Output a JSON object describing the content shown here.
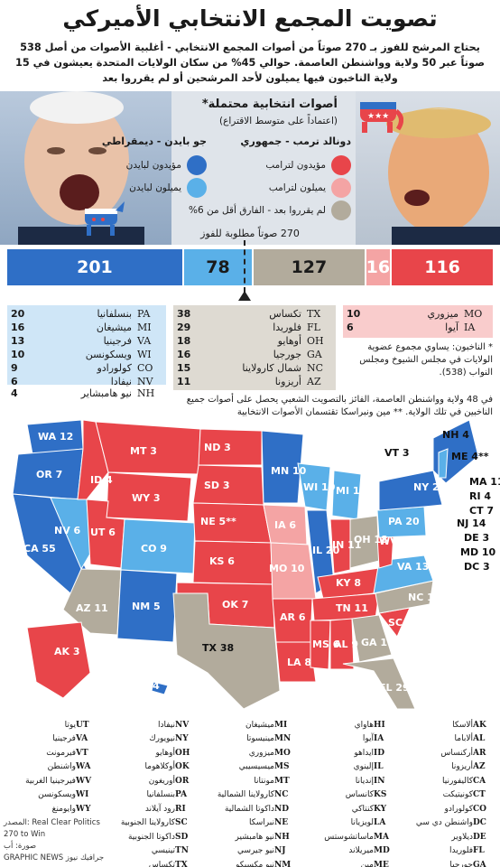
{
  "title": "تصويت المجمع الانتخابي الأميركي",
  "intro": "يحتاج المرشح للفوز بـ 270 صوتاً من أصوات المجمع الانتخابي - أغلبية الأصوات من أصل 538 صوتاً عبر 50 ولاية وواشنطن العاصمة. حوالي 45% من سكان الولايات المتحدة يعيشون في 15 ولاية الناخبون فيها يميلون لأحد المرشحين أو لم يقرروا بعد",
  "legend": {
    "title": "أصوات انتخابية محتملة*",
    "subtitle": "(اعتماداً على متوسط الاقتراع)",
    "trump": "دونالد ترمب - جمهوري",
    "biden": "جو بايدن - ديمقراطي",
    "items": [
      {
        "label": "مؤيدون لترامب",
        "color": "#e8454a"
      },
      {
        "label": "يميلون لترامب",
        "color": "#f4a4a4"
      },
      {
        "label": "لم يقرروا بعد - الفارق أقل من 6%",
        "color": "#b2ab9c"
      },
      {
        "label": "مؤيدون لبايدن",
        "color": "#2f6fc6"
      },
      {
        "label": "يميلون لبايدن",
        "color": "#5ab0e8"
      }
    ]
  },
  "bar": {
    "label": "270 صوتاً مطلوبة للفوز",
    "segments": [
      {
        "value": 201,
        "color": "#2f6fc6"
      },
      {
        "value": 78,
        "color": "#5ab0e8"
      },
      {
        "value": 127,
        "color": "#b2ab9c"
      },
      {
        "value": 16,
        "color": "#f4a4a4"
      },
      {
        "value": 116,
        "color": "#e8454a"
      }
    ]
  },
  "lean_biden": [
    {
      "votes": "20",
      "abbr": "PA",
      "name": "بنسلفانيا"
    },
    {
      "votes": "16",
      "abbr": "MI",
      "name": "ميشيغان"
    },
    {
      "votes": "13",
      "abbr": "VA",
      "name": "فرجينيا"
    },
    {
      "votes": "10",
      "abbr": "WI",
      "name": "ويسكونسن"
    },
    {
      "votes": "9",
      "abbr": "CO",
      "name": "كولورادو"
    },
    {
      "votes": "6",
      "abbr": "NV",
      "name": "نيفادا"
    },
    {
      "votes": "4",
      "abbr": "NH",
      "name": "نيو هامبشاير"
    }
  ],
  "tossup": [
    {
      "votes": "38",
      "abbr": "TX",
      "name": "تكساس"
    },
    {
      "votes": "29",
      "abbr": "FL",
      "name": "فلوريدا"
    },
    {
      "votes": "18",
      "abbr": "OH",
      "name": "أوهايو"
    },
    {
      "votes": "16",
      "abbr": "GA",
      "name": "جورجيا"
    },
    {
      "votes": "15",
      "abbr": "NC",
      "name": "شمال كارولاينا"
    },
    {
      "votes": "11",
      "abbr": "AZ",
      "name": "أريزونا"
    }
  ],
  "lean_trump": [
    {
      "votes": "10",
      "abbr": "MO",
      "name": "ميزوري"
    },
    {
      "votes": "6",
      "abbr": "IA",
      "name": "آيوا"
    }
  ],
  "note_electors": "* الناخبون: يساوي مجموع عضوية الولايات في مجلس الشيوخ ومجلس النواب (538).",
  "note_wta": "في 48 ولاية وواشنطن العاصمة، الفائز بالتصويت الشعبي يحصل على أصوات جميع الناخبين في تلك الولاية. ** مين ونبراسكا تقتسمان الأصوات الانتخابية",
  "key_columns": [
    [
      [
        "AK",
        "ألاسكا"
      ],
      [
        "AL",
        "ألاباما"
      ],
      [
        "AR",
        "أركنساس"
      ],
      [
        "AZ",
        "أريزونا"
      ],
      [
        "CA",
        "كاليفورنيا"
      ],
      [
        "CT",
        "كونيتيكت"
      ],
      [
        "CO",
        "كولورادو"
      ],
      [
        "DC",
        "واشنطن دي سي"
      ],
      [
        "DE",
        "ديلاوير"
      ],
      [
        "FL",
        "فلوريدا"
      ],
      [
        "GA",
        "جورجيا"
      ]
    ],
    [
      [
        "HI",
        "هاواي"
      ],
      [
        "IA",
        "آيوا"
      ],
      [
        "ID",
        "ايداهو"
      ],
      [
        "IL",
        "إلينوي"
      ],
      [
        "IN",
        "إنديانا"
      ],
      [
        "KS",
        "كانساس"
      ],
      [
        "KY",
        "كنتاكي"
      ],
      [
        "LA",
        "لويزيانا"
      ],
      [
        "MA",
        "ماساتشوستس"
      ],
      [
        "MD",
        "ميريلاند"
      ],
      [
        "ME",
        "مين"
      ]
    ],
    [
      [
        "MI",
        "ميشيغان"
      ],
      [
        "MN",
        "مينيسوتا"
      ],
      [
        "MO",
        "ميزوري"
      ],
      [
        "MS",
        "ميسيسيبي"
      ],
      [
        "MT",
        "مونتانا"
      ],
      [
        "NC",
        "كارولاينا الشمالية"
      ],
      [
        "ND",
        "داكوتا الشمالية"
      ],
      [
        "NE",
        "نبراسكا"
      ],
      [
        "NH",
        "نيو هامبشير"
      ],
      [
        "NJ",
        "نيو جيرسي"
      ],
      [
        "NM",
        "نيو مكسيكو"
      ]
    ],
    [
      [
        "NV",
        "نيفادا"
      ],
      [
        "NY",
        "نيويورك"
      ],
      [
        "OH",
        "أوهايو"
      ],
      [
        "OK",
        "أوكلاهوما"
      ],
      [
        "OR",
        "أوريغون"
      ],
      [
        "PA",
        "بنسلفانيا"
      ],
      [
        "RI",
        "رود آيلاند"
      ],
      [
        "SC",
        "كارولاينا الجنوبية"
      ],
      [
        "SD",
        "داكوتا الجنوبية"
      ],
      [
        "TN",
        "تينيسي"
      ],
      [
        "TX",
        "تكساس"
      ]
    ],
    [
      [
        "UT",
        "يوتا"
      ],
      [
        "VA",
        "فرجينيا"
      ],
      [
        "VT",
        "فيرمونت"
      ],
      [
        "WA",
        "واشنطن"
      ],
      [
        "WV",
        "فيرجينيا الغربية"
      ],
      [
        "WI",
        "ويسكونسن"
      ],
      [
        "WY",
        "وايومنغ"
      ]
    ]
  ],
  "credit_source": "المصدر: Real Clear Politics",
  "credit_date": "270 to Win",
  "credit_month": "صورة: أب",
  "credit_brand": "GRAPHIC NEWS جرافيك نيوز",
  "map_labels": [
    {
      "t": "WA 12",
      "c": "#2f6fc6"
    },
    {
      "t": "OR 7",
      "c": "#2f6fc6"
    },
    {
      "t": "CA 55",
      "c": "#2f6fc6"
    },
    {
      "t": "NV 6",
      "c": "#5ab0e8"
    },
    {
      "t": "ID 4",
      "c": "#e8454a"
    },
    {
      "t": "MT 3",
      "c": "#e8454a"
    },
    {
      "t": "WY 3",
      "c": "#e8454a"
    },
    {
      "t": "UT 6",
      "c": "#e8454a"
    },
    {
      "t": "CO 9",
      "c": "#5ab0e8"
    },
    {
      "t": "AZ 11",
      "c": "#b2ab9c"
    },
    {
      "t": "NM 5",
      "c": "#2f6fc6"
    },
    {
      "t": "ND 3",
      "c": "#e8454a"
    },
    {
      "t": "SD 3",
      "c": "#e8454a"
    },
    {
      "t": "NE 5**",
      "c": "#e8454a"
    },
    {
      "t": "KS 6",
      "c": "#e8454a"
    },
    {
      "t": "OK 7",
      "c": "#e8454a"
    },
    {
      "t": "TX 38",
      "c": "#b2ab9c"
    },
    {
      "t": "MN 10",
      "c": "#2f6fc6"
    },
    {
      "t": "IA 6",
      "c": "#f4a4a4"
    },
    {
      "t": "MO 10",
      "c": "#f4a4a4"
    },
    {
      "t": "AR 6",
      "c": "#e8454a"
    },
    {
      "t": "LA 8",
      "c": "#e8454a"
    },
    {
      "t": "WI 10",
      "c": "#5ab0e8"
    },
    {
      "t": "IL 20",
      "c": "#2f6fc6"
    },
    {
      "t": "MI 16",
      "c": "#5ab0e8"
    },
    {
      "t": "IN 11",
      "c": "#e8454a"
    },
    {
      "t": "OH 18",
      "c": "#b2ab9c"
    },
    {
      "t": "KY 8",
      "c": "#e8454a"
    },
    {
      "t": "TN 11",
      "c": "#e8454a"
    },
    {
      "t": "MS 6",
      "c": "#e8454a"
    },
    {
      "t": "AL 9",
      "c": "#e8454a"
    },
    {
      "t": "GA 16",
      "c": "#b2ab9c"
    },
    {
      "t": "FL 29",
      "c": "#b2ab9c"
    },
    {
      "t": "SC 9",
      "c": "#e8454a"
    },
    {
      "t": "NC 15",
      "c": "#b2ab9c"
    },
    {
      "t": "VA 13",
      "c": "#5ab0e8"
    },
    {
      "t": "WV 5",
      "c": "#e8454a"
    },
    {
      "t": "PA 20",
      "c": "#5ab0e8"
    },
    {
      "t": "NY 29",
      "c": "#2f6fc6"
    },
    {
      "t": "VT 3",
      "c": "#2f6fc6"
    },
    {
      "t": "NH 4",
      "c": "#5ab0e8"
    },
    {
      "t": "ME 4**",
      "c": "#2f6fc6"
    },
    {
      "t": "MA 11",
      "c": "#2f6fc6"
    },
    {
      "t": "RI 4",
      "c": "#2f6fc6"
    },
    {
      "t": "CT 7",
      "c": "#2f6fc6"
    },
    {
      "t": "NJ 14",
      "c": "#2f6fc6"
    },
    {
      "t": "DE 3",
      "c": "#2f6fc6"
    },
    {
      "t": "MD 10",
      "c": "#2f6fc6"
    },
    {
      "t": "DC 3",
      "c": "#2f6fc6"
    },
    {
      "t": "AK 3",
      "c": "#e8454a"
    },
    {
      "t": "HI 4",
      "c": "#2f6fc6"
    }
  ]
}
